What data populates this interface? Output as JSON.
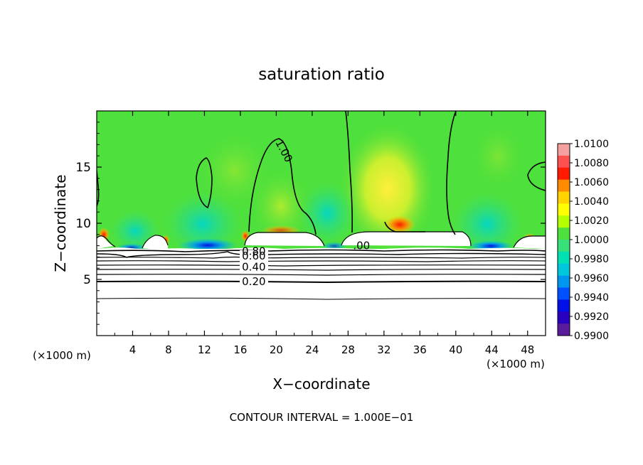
{
  "chart_data": {
    "type": "heatmap",
    "title": "saturation ratio",
    "xlabel": "X−coordinate",
    "ylabel": "Z−coordinate",
    "x_unit_left": "(×1000 m)",
    "x_unit_right": "(×1000 m)",
    "xlim": [
      0,
      50
    ],
    "ylim": [
      0,
      20
    ],
    "x_ticks": [
      4,
      8,
      12,
      16,
      20,
      24,
      28,
      32,
      36,
      40,
      44,
      48
    ],
    "y_ticks": [
      5,
      10,
      15
    ],
    "footer": "CONTOUR INTERVAL = 1.000E−01",
    "colorbar": {
      "min": 0.99,
      "max": 1.01,
      "labels": [
        "1.0100",
        "1.0080",
        "1.0060",
        "1.0040",
        "1.0020",
        "1.0000",
        "0.9980",
        "0.9960",
        "0.9940",
        "0.9920",
        "0.9900"
      ],
      "colors": [
        "#f5a0a0",
        "#ff5050",
        "#ff1a00",
        "#ff8c00",
        "#ffd200",
        "#ffff00",
        "#b4ff00",
        "#4ee03c",
        "#38e07a",
        "#00e0b4",
        "#00c8dc",
        "#0096f0",
        "#0050ff",
        "#0010e6",
        "#2a00c0",
        "#5a1a9c"
      ]
    },
    "contour_labels": [
      {
        "text": "1.00",
        "x": 20.5,
        "z": 16.6
      },
      {
        "text": "0.80",
        "x": 17.5,
        "z": 7.5
      },
      {
        "text": "0.60",
        "x": 17.5,
        "z": 7.1
      },
      {
        "text": "0.40",
        "x": 17.5,
        "z": 6.1
      },
      {
        "text": "0.20",
        "x": 17.5,
        "z": 4.8
      },
      {
        "text": ".00",
        "x": 29.5,
        "z": 8.0
      }
    ]
  }
}
